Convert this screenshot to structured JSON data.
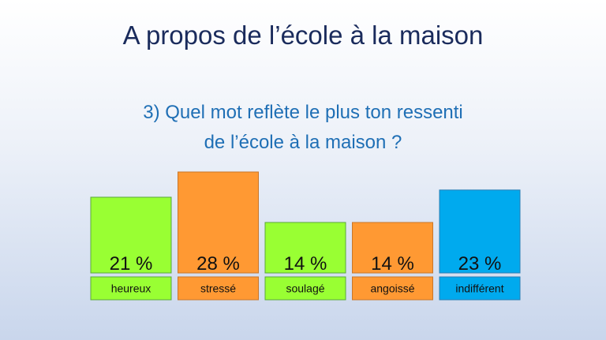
{
  "slide": {
    "title": "A propos de l’école à la maison",
    "question_line1": "3) Quel mot reflète le plus ton ressenti",
    "question_line2": "de l’école à la maison ?"
  },
  "chart_data": {
    "type": "bar",
    "categories": [
      "heureux",
      "stressé",
      "soulagé",
      "angoissé",
      "indifférent"
    ],
    "values": [
      21,
      28,
      14,
      14,
      23
    ],
    "value_labels": [
      "21 %",
      "28 %",
      "14 %",
      "14 %",
      "23 %"
    ],
    "colors": [
      "#99ff33",
      "#ff9933",
      "#99ff33",
      "#ff9933",
      "#00aaee"
    ],
    "border_colors": [
      "#5aa83a",
      "#c9762a",
      "#5aa83a",
      "#c9762a",
      "#2a7fb5"
    ],
    "title": "",
    "xlabel": "",
    "ylabel": "",
    "grid": false
  }
}
